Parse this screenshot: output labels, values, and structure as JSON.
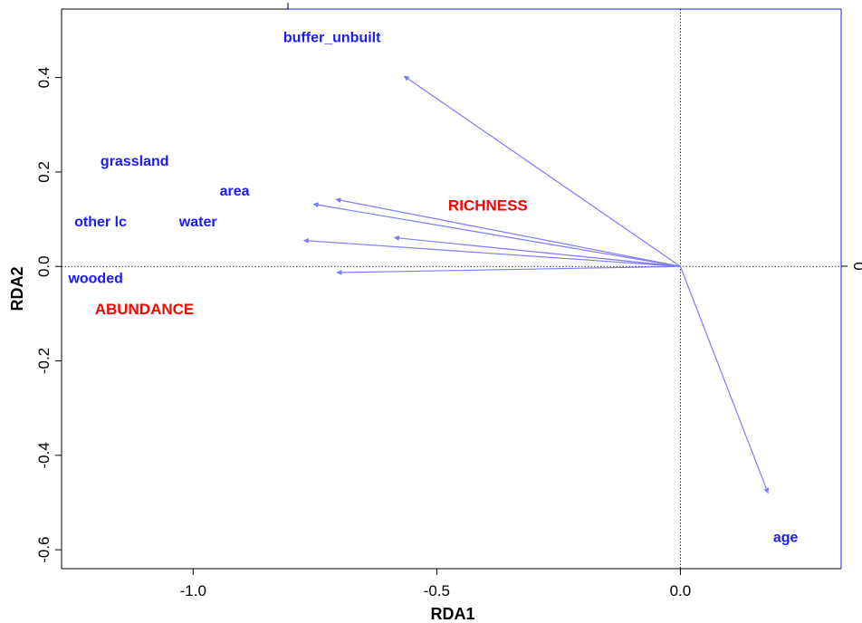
{
  "chart_data": {
    "type": "scatter",
    "subtype": "rda-biplot",
    "xlabel": "RDA1",
    "ylabel": "RDA2",
    "xlim": [
      -1.27,
      0.33
    ],
    "ylim": [
      -0.64,
      0.545
    ],
    "x_ticks": [
      -1.0,
      -0.5,
      0.0
    ],
    "x_tick_labels": [
      "-1.0",
      "-0.5",
      "0.0"
    ],
    "y_ticks": [
      -0.6,
      -0.4,
      -0.2,
      0.0,
      0.2,
      0.4
    ],
    "y_tick_labels": [
      "-0.6",
      "-0.4",
      "-0.2",
      "0.0",
      "0.2",
      "0.4"
    ],
    "right_axis_tick_label": "0",
    "zero_lines": true,
    "arrow_color": "#7b7bff",
    "frame_right_top_color": "#1a1aff",
    "explanatory_variables": [
      {
        "label": "buffer_unbuilt",
        "arrow_tip": [
          -0.567,
          0.403
        ],
        "label_pos": [
          -0.715,
          0.483
        ]
      },
      {
        "label": "grassland",
        "arrow_tip": [
          -0.707,
          0.142
        ],
        "label_pos": [
          -1.12,
          0.221
        ]
      },
      {
        "label": "area",
        "arrow_tip": [
          -0.753,
          0.132
        ],
        "label_pos": [
          -0.915,
          0.158
        ]
      },
      {
        "label": "water",
        "arrow_tip": [
          -0.587,
          0.061
        ],
        "label_pos": [
          -0.99,
          0.093
        ]
      },
      {
        "label": "other lc",
        "arrow_tip": [
          -0.773,
          0.055
        ],
        "label_pos": [
          -1.19,
          0.093
        ]
      },
      {
        "label": "wooded",
        "arrow_tip": [
          -0.705,
          -0.013
        ],
        "label_pos": [
          -1.2,
          -0.027
        ]
      },
      {
        "label": "age",
        "arrow_tip": [
          0.18,
          -0.48
        ],
        "label_pos": [
          0.216,
          -0.575
        ]
      }
    ],
    "response_variables": [
      {
        "label": "RICHNESS",
        "label_pos": [
          -0.395,
          0.127
        ]
      },
      {
        "label": "ABUNDANCE",
        "label_pos": [
          -1.1,
          -0.093
        ]
      }
    ]
  }
}
